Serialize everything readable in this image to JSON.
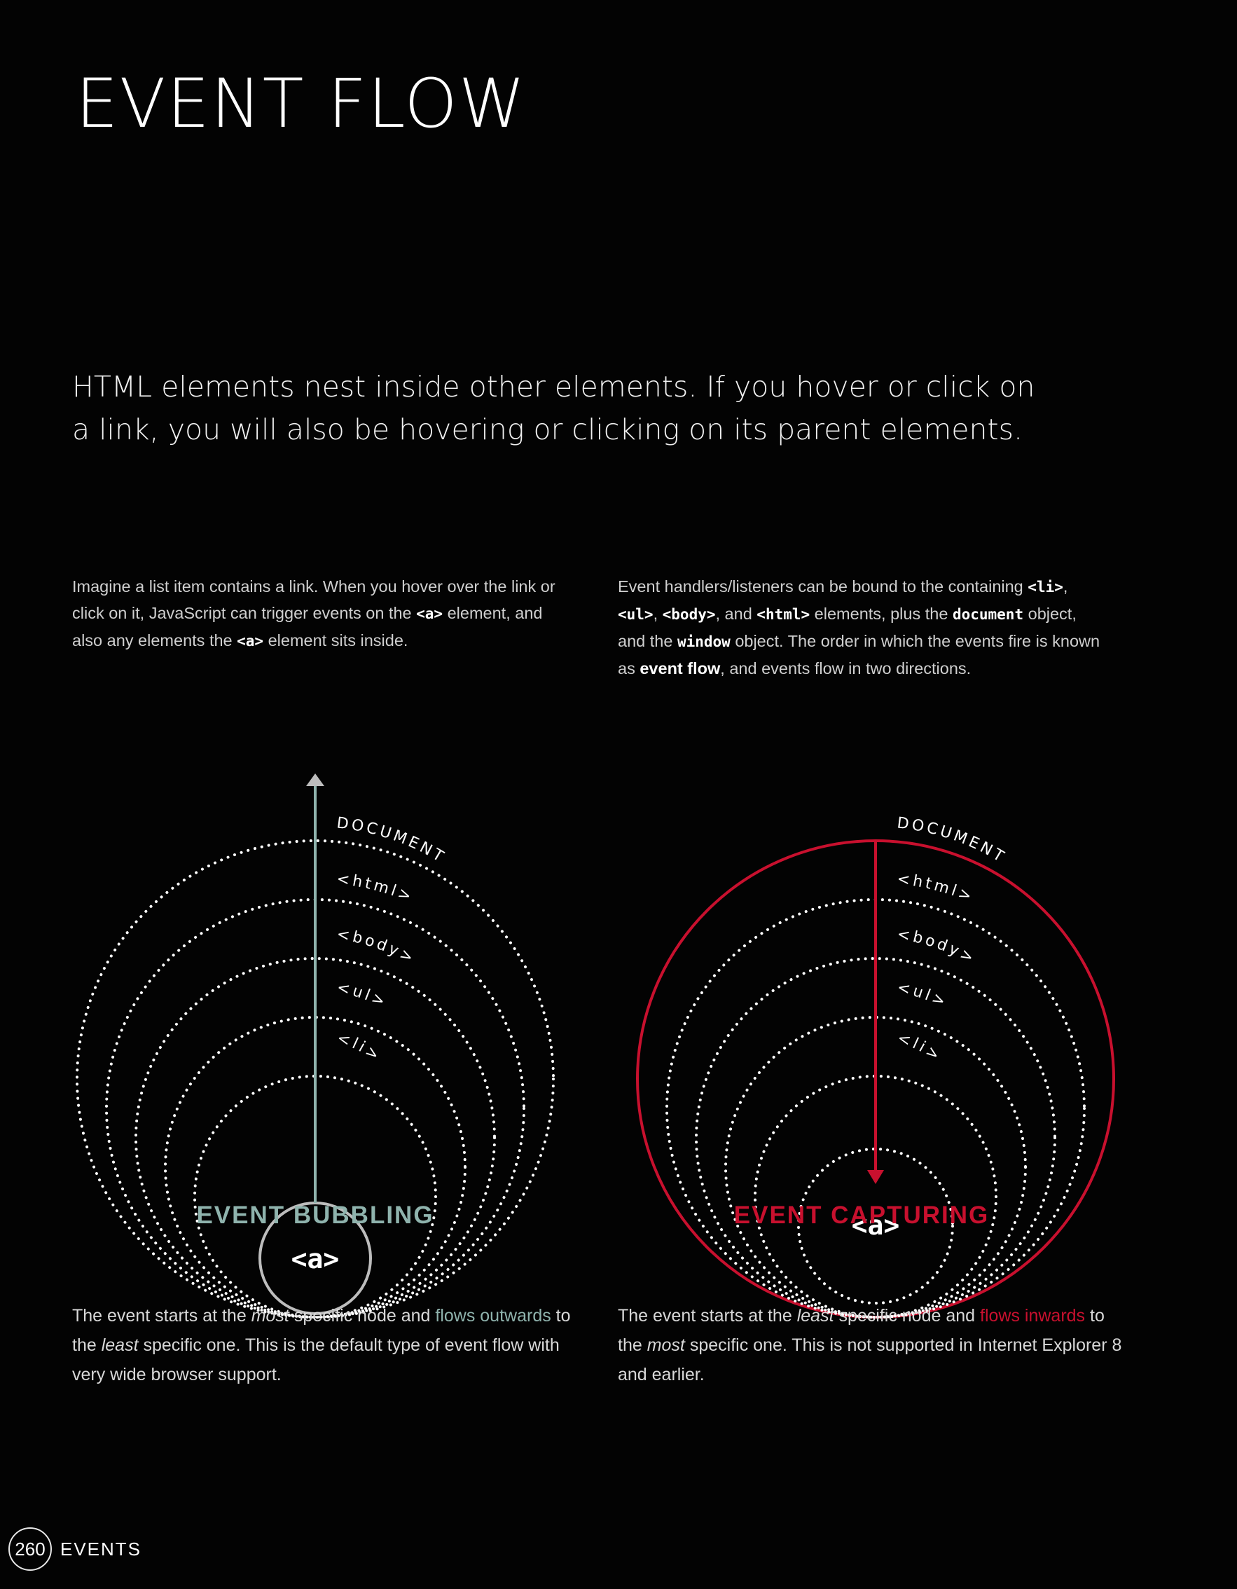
{
  "title": "EVENT FLOW",
  "intro": "HTML elements nest inside other elements. If you hover or click on a link, you will also be hovering or clicking on its parent elements.",
  "left_para": {
    "t1": "Imagine a list item contains a link. When you hover over the link or click on it, JavaScript can trigger events on the ",
    "code1": "<a>",
    "t2": " element, and also any elements the ",
    "code2": "<a>",
    "t3": " element sits inside."
  },
  "right_para": {
    "t1": "Event handlers/listeners can be bound to the containing ",
    "c1": "<li>",
    "s1": ", ",
    "c2": "<ul>",
    "s2": ", ",
    "c3": "<body>",
    "s3": ", and ",
    "c4": "<html>",
    "t2": " elements, plus the ",
    "c5": "document",
    "t3": " object, and the ",
    "c6": "window",
    "t4": " object. The order in which the events fire is known as ",
    "b1": "event flow",
    "t5": ", and events flow in two directions."
  },
  "diagram": {
    "layers": [
      "DOCUMENT",
      "<html>",
      "<body>",
      "<ul>",
      "<li>"
    ],
    "center": "<a>",
    "colors": {
      "bubbling": "#8fb3ad",
      "capturing": "#c8102e"
    }
  },
  "bubbling": {
    "heading": "EVENT BUBBLING",
    "d1": "The event starts at the ",
    "e1": "most",
    "d2": " specific node and ",
    "hl": "flows outwards",
    "d3": " to the ",
    "e2": "least",
    "d4": " specific one. This is the default type of event flow with very wide browser support."
  },
  "capturing": {
    "heading": "EVENT CAPTURING",
    "d1": "The event starts at the ",
    "e1": "least",
    "d2": " specific node and ",
    "hl": "flows inwards",
    "d3": " to the ",
    "e2": "most",
    "d4": " specific one. This is not supported in Internet Explorer 8 and earlier."
  },
  "footer": {
    "page": "260",
    "section": "EVENTS"
  }
}
